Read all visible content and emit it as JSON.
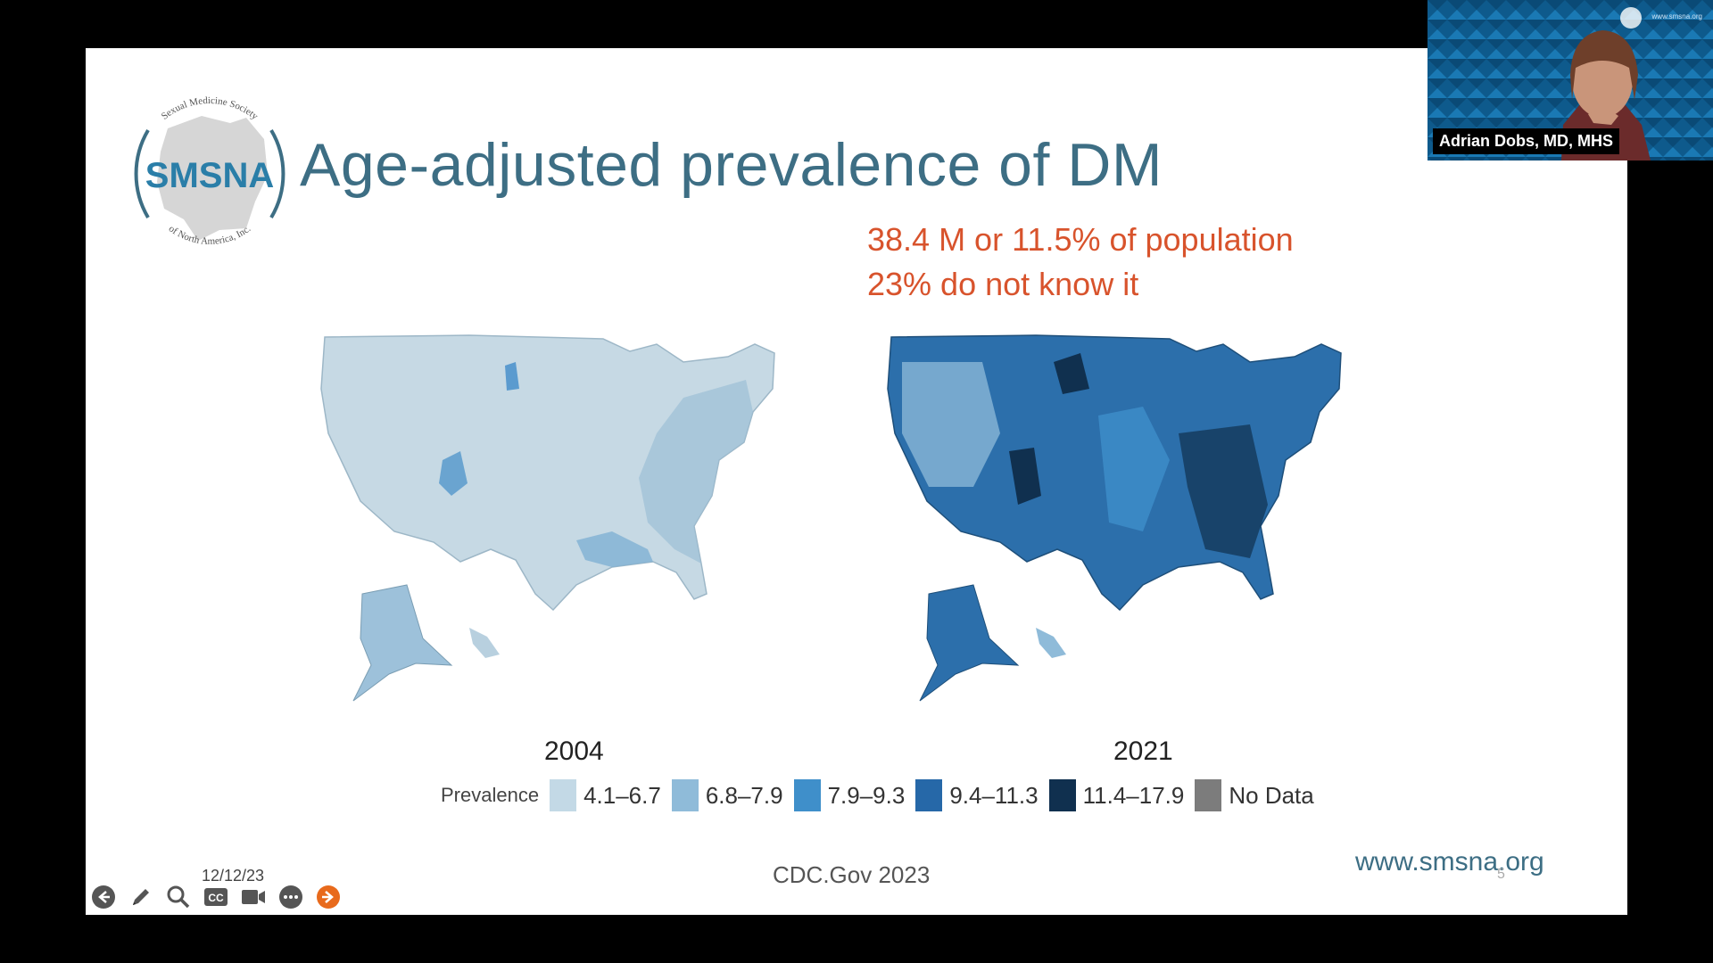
{
  "slide": {
    "title": "Age-adjusted prevalence of DM",
    "stat_line_1": "38.4 M or 11.5% of population",
    "stat_line_2": "23% do not know it",
    "source": "CDC.Gov 2023",
    "site_url": "www.smsna.org",
    "page_number": "5",
    "date": "12/12/23",
    "logo": {
      "abbreviation": "SMSNA",
      "top_arc_text": "Sexual Medicine Society",
      "bottom_arc_text": "of North America, Inc."
    },
    "colors": {
      "title": "#3d6e84",
      "stat": "#d8532c",
      "url": "#3d6e84"
    }
  },
  "chart_data": {
    "type": "choropleth",
    "maps": [
      {
        "year": "2004",
        "dominant_class": "4.1–6.7"
      },
      {
        "year": "2021",
        "dominant_class": "9.4–11.3"
      }
    ],
    "legend": {
      "label": "Prevalence",
      "classes": [
        {
          "label": "4.1–6.7",
          "color": "#c3d9e6"
        },
        {
          "label": "6.8–7.9",
          "color": "#8fbbd9"
        },
        {
          "label": "7.9–9.3",
          "color": "#3f8fca"
        },
        {
          "label": "9.4–11.3",
          "color": "#2668a8"
        },
        {
          "label": "11.4–17.9",
          "color": "#10304f"
        },
        {
          "label": "No Data",
          "color": "#7c7c7c"
        }
      ]
    }
  },
  "toolbar": {
    "buttons": [
      {
        "name": "back-icon"
      },
      {
        "name": "pen-icon"
      },
      {
        "name": "search-icon"
      },
      {
        "name": "captions-icon"
      },
      {
        "name": "camera-icon"
      },
      {
        "name": "more-icon"
      },
      {
        "name": "next-icon"
      }
    ]
  },
  "webcam": {
    "participant_name": "Adrian Dobs, MD, MHS",
    "background_url": "www.smsna.org"
  }
}
